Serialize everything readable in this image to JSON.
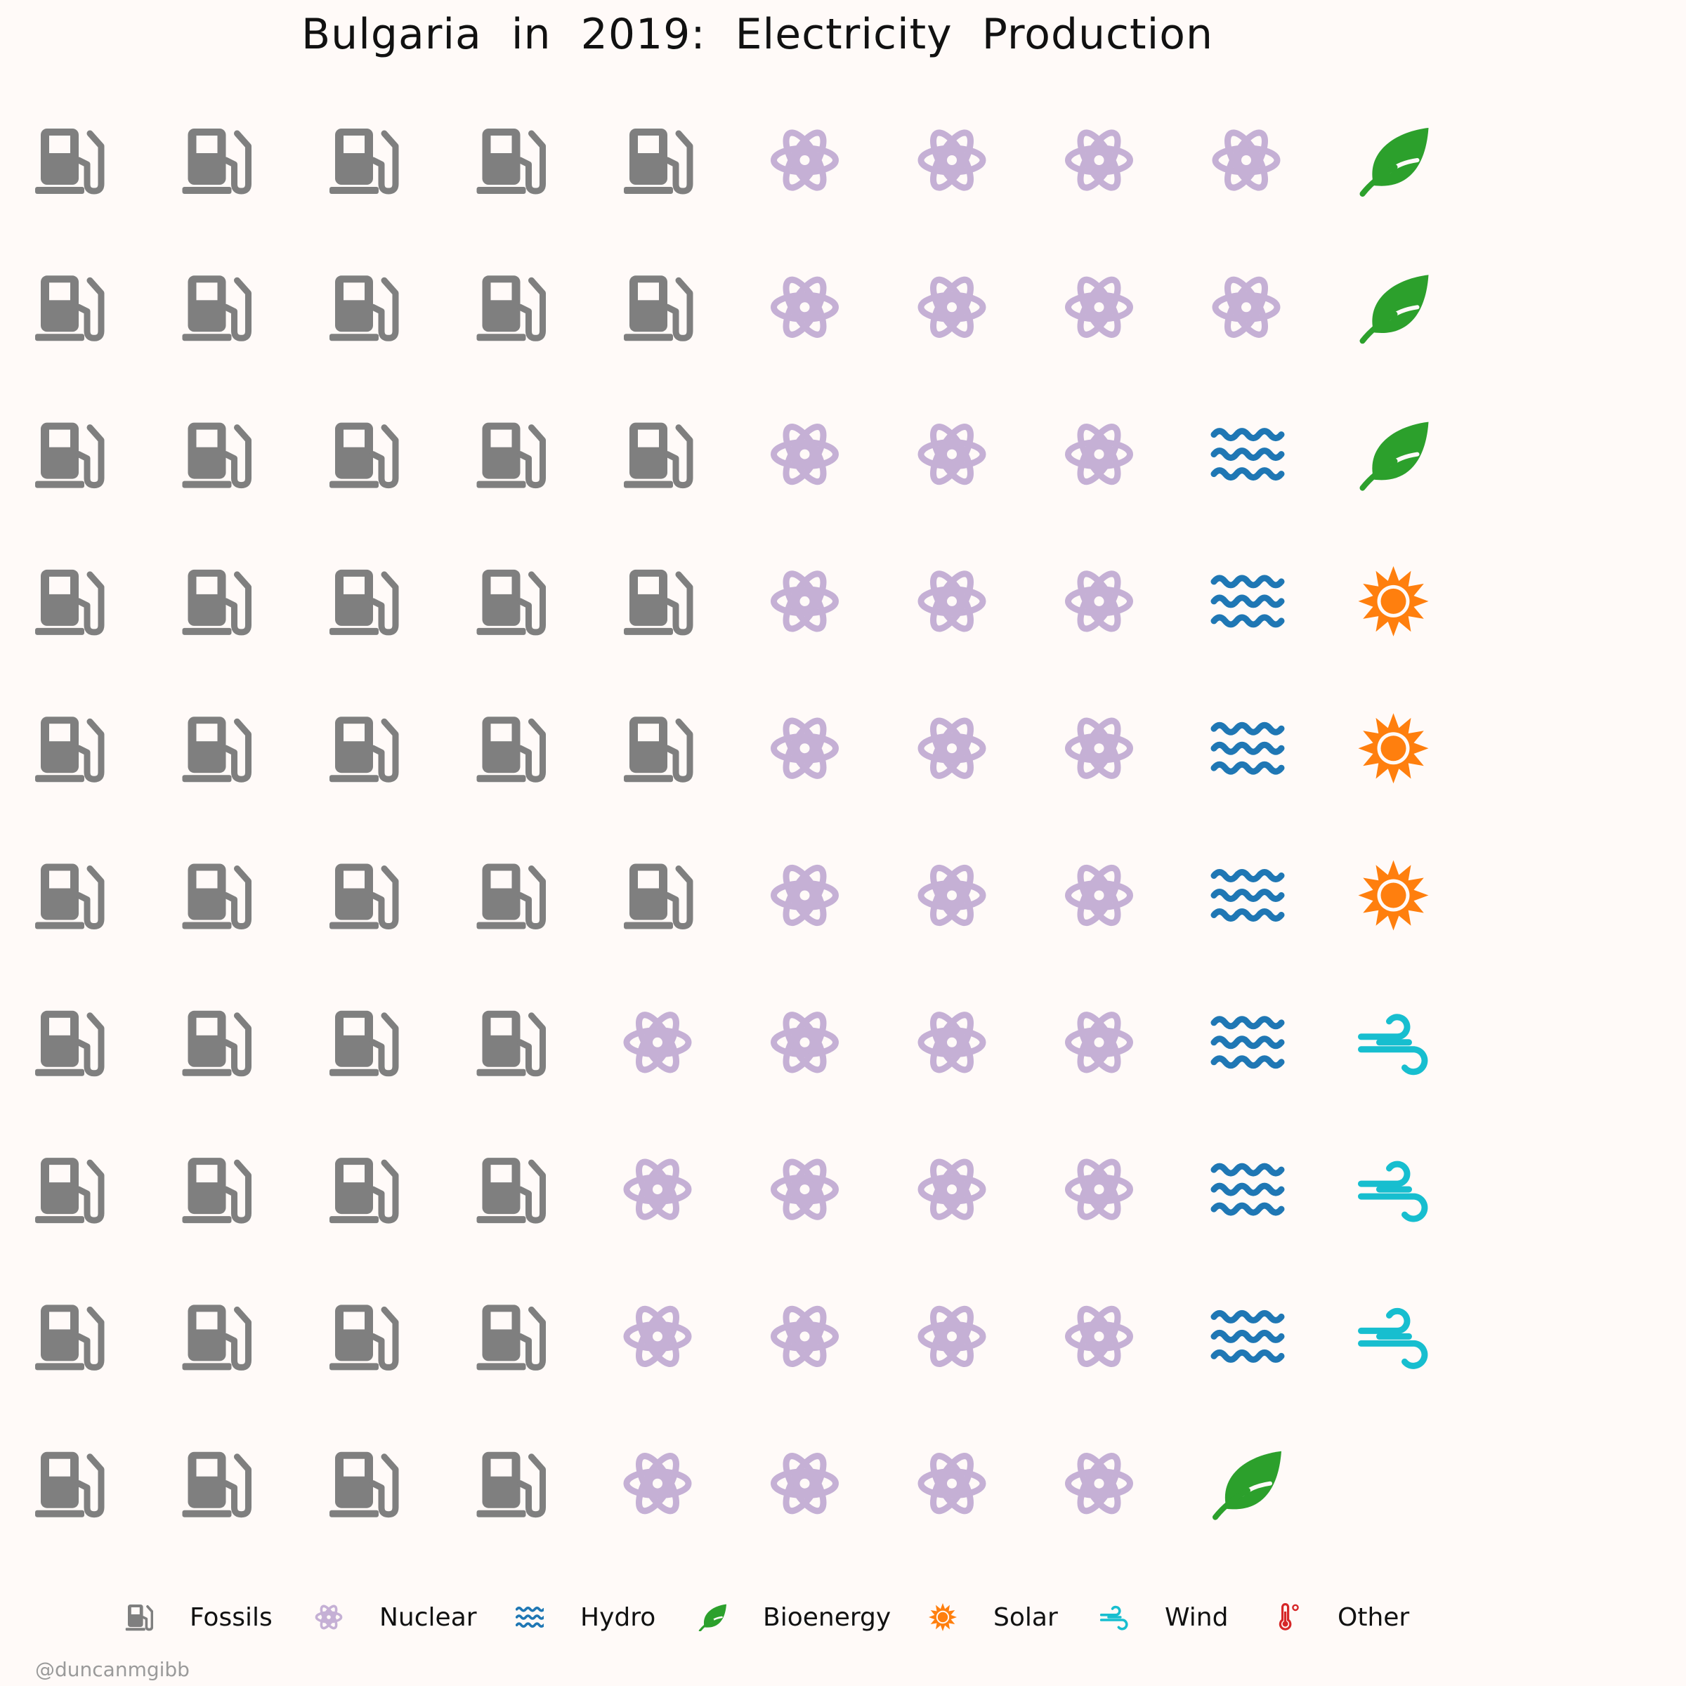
{
  "chart_data": {
    "type": "waffle",
    "title": "Bulgaria in 2019: Electricity Production",
    "grid": {
      "rows": 10,
      "cols": 10
    },
    "fill_order": "column-major",
    "categories": [
      {
        "name": "Fossils",
        "value": 46,
        "color": "#7f7f7f",
        "icon": "gas-pump-icon"
      },
      {
        "name": "Nuclear",
        "value": 36,
        "color": "#c5b0d5",
        "icon": "atom-icon"
      },
      {
        "name": "Hydro",
        "value": 7,
        "color": "#1f77b4",
        "icon": "water-icon"
      },
      {
        "name": "Bioenergy",
        "value": 4,
        "color": "#2ca02c",
        "icon": "leaf-icon"
      },
      {
        "name": "Solar",
        "value": 3,
        "color": "#ff7f0e",
        "icon": "sun-icon"
      },
      {
        "name": "Wind",
        "value": 3,
        "color": "#17becf",
        "icon": "wind-icon"
      },
      {
        "name": "Other",
        "value": 0,
        "color": "#d62728",
        "icon": "thermometer-icon"
      }
    ],
    "legend_position": "bottom"
  },
  "credit": "@duncanmgibb"
}
